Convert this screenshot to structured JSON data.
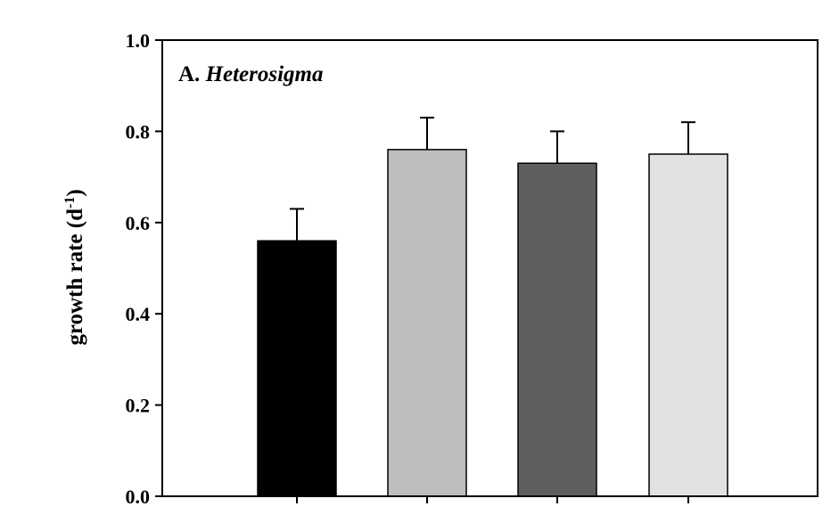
{
  "chart_data": {
    "type": "bar",
    "panel_label": {
      "prefix": "A.",
      "name": "Heterosigma"
    },
    "ylabel": {
      "main": "growth rate (d",
      "sup": "-1",
      "close": ")"
    },
    "ylim": [
      0,
      1.0
    ],
    "yticks": [
      "0.0",
      "0.2",
      "0.4",
      "0.6",
      "0.8",
      "1.0"
    ],
    "grid": false,
    "values": [
      0.56,
      0.76,
      0.73,
      0.75
    ],
    "errors": [
      0.07,
      0.07,
      0.07,
      0.07
    ],
    "colors": [
      "#000000",
      "#bdbdbd",
      "#5f5f5f",
      "#e2e2e2"
    ]
  }
}
